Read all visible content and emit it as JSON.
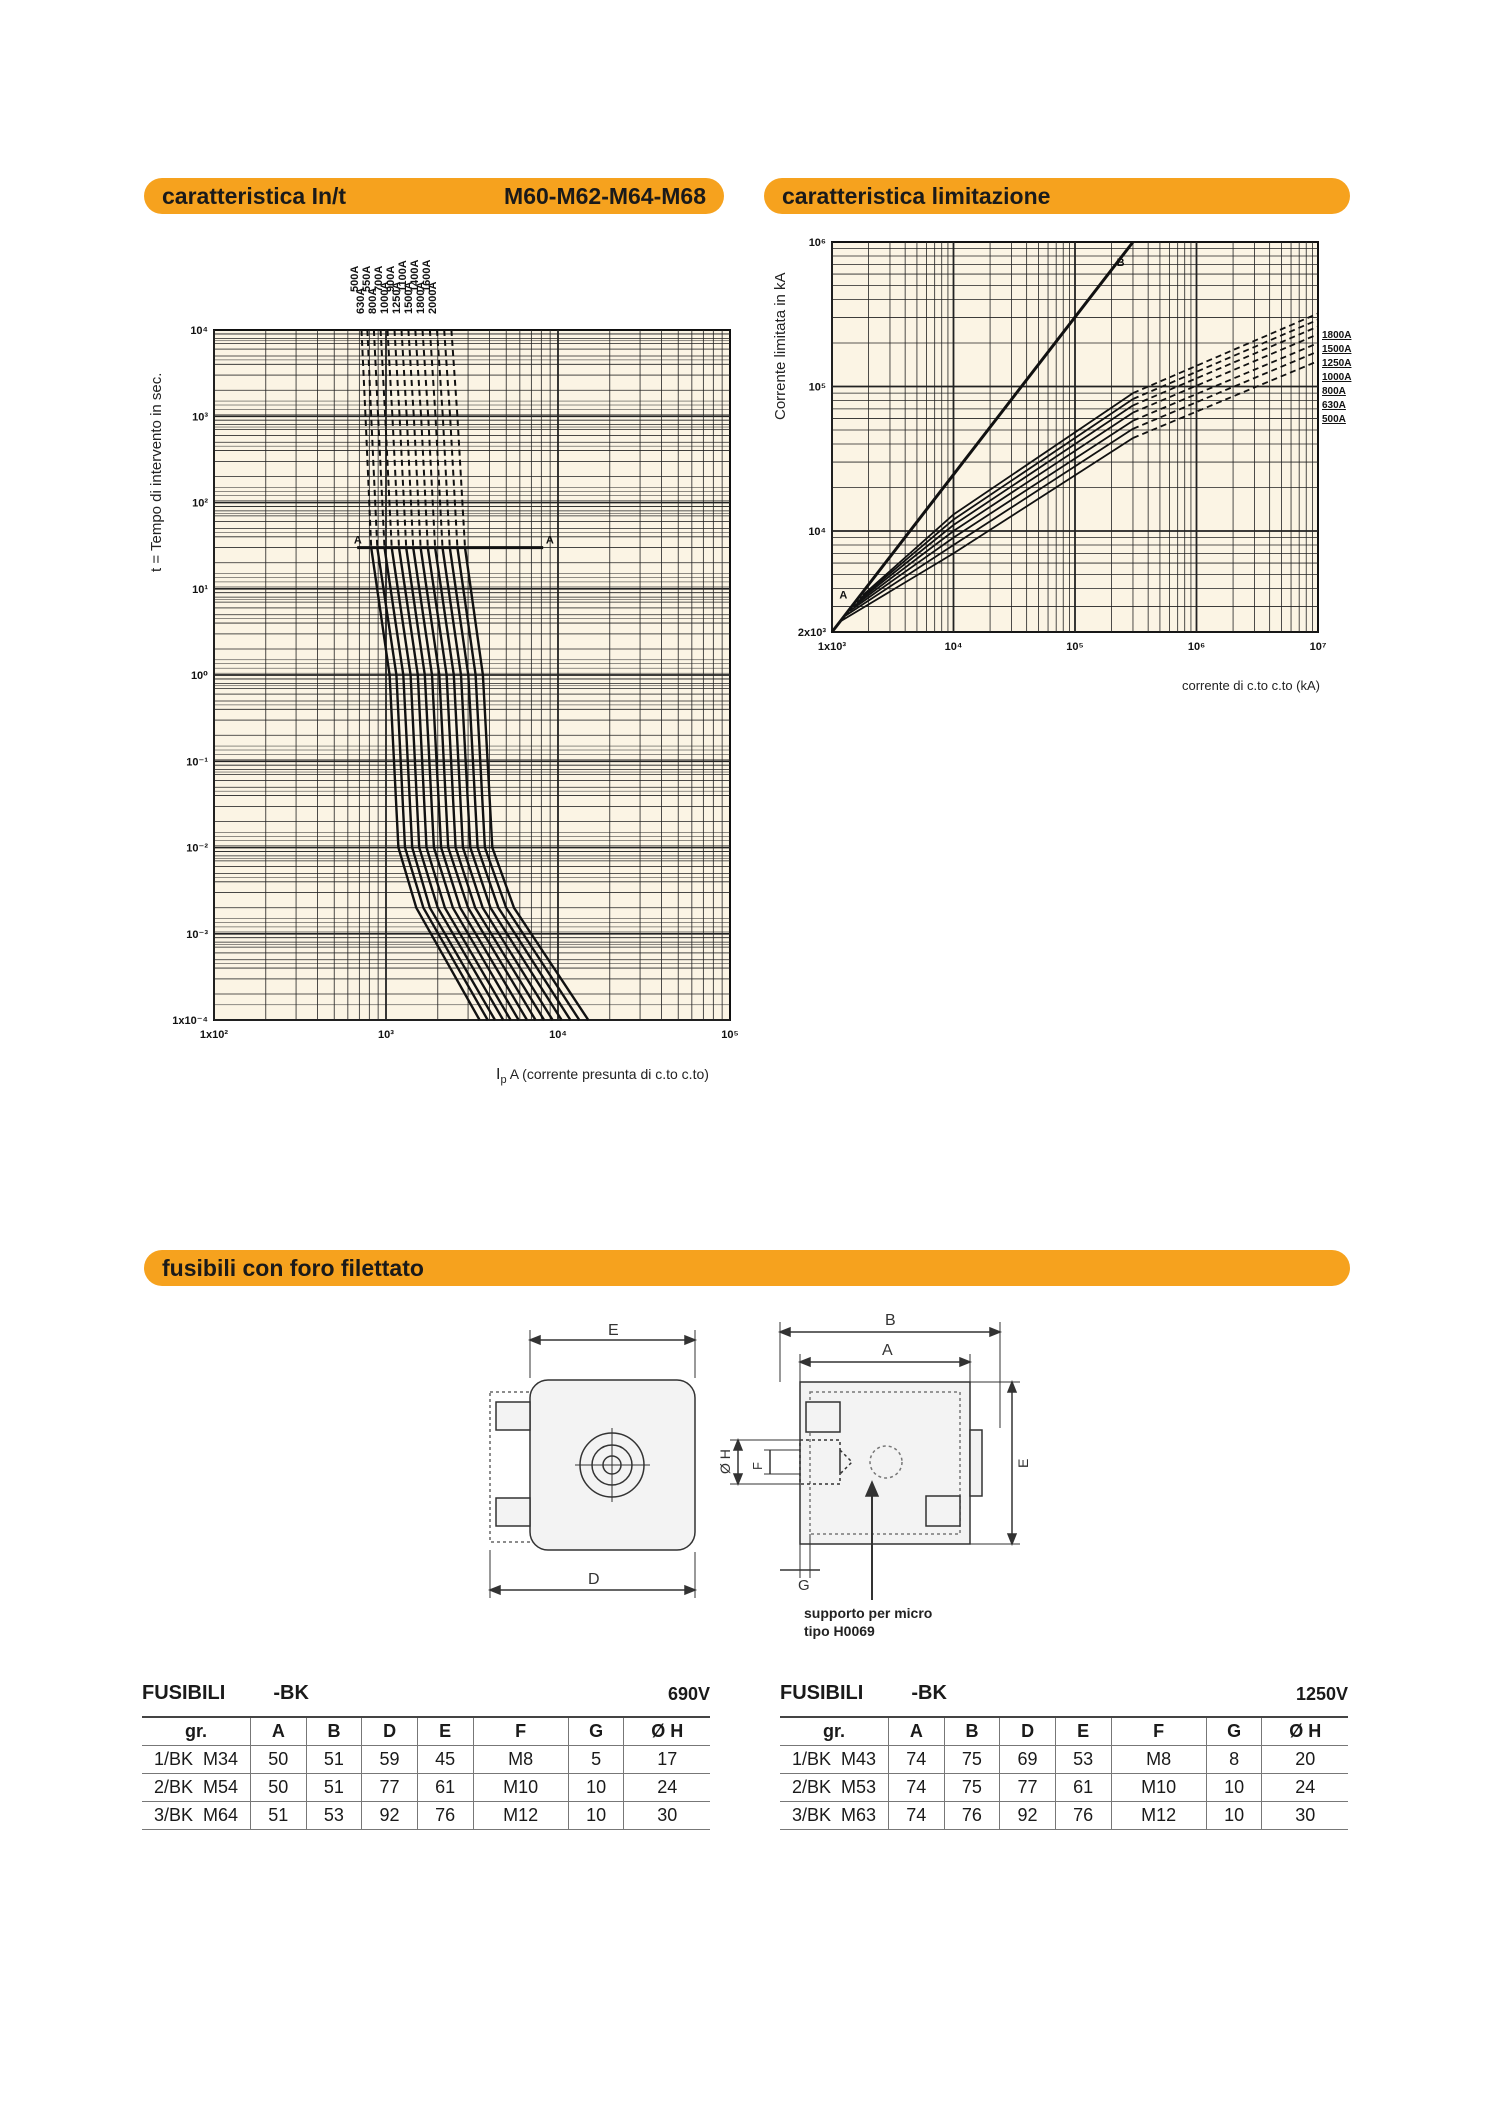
{
  "sections": {
    "in_t": {
      "title": "caratteristica In/t",
      "models": "M60-M62-M64-M68"
    },
    "limit": {
      "title": "caratteristica limitazione"
    },
    "fuses": {
      "title": "fusibili con foro filettato"
    }
  },
  "charts": [
    {
      "type": "line",
      "title": "caratteristica In/t",
      "ylabel": "t = Tempo di intervento in sec.",
      "xlabel_main": "A (corrente presunta di c.to c.to)",
      "xlabel_sym": "I",
      "xlabel_sub": "p",
      "xscale": "log",
      "yscale": "log",
      "xlim": [
        100,
        100000
      ],
      "ylim": [
        0.0001,
        10000
      ],
      "x_ticks": [
        {
          "v": 100,
          "label": "1x10²"
        },
        {
          "v": 1000,
          "label": "10³"
        },
        {
          "v": 10000,
          "label": "10⁴"
        },
        {
          "v": 100000,
          "label": "10⁵"
        }
      ],
      "y_ticks": [
        {
          "v": 10000,
          "label": "10⁴"
        },
        {
          "v": 1000,
          "label": "10³"
        },
        {
          "v": 100,
          "label": "10²"
        },
        {
          "v": 10,
          "label": "10¹"
        },
        {
          "v": 1,
          "label": "10⁰"
        },
        {
          "v": 0.1,
          "label": "10⁻¹"
        },
        {
          "v": 0.01,
          "label": "10⁻²"
        },
        {
          "v": 0.001,
          "label": "10⁻³"
        },
        {
          "v": 0.0001,
          "label": "1x10⁻⁴"
        }
      ],
      "annotations": [
        {
          "text": "A",
          "x": 650,
          "y": 30
        },
        {
          "text": "A",
          "x": 8500,
          "y": 30
        }
      ],
      "series": [
        {
          "name": "500A",
          "ratings_a": 500
        },
        {
          "name": "630A",
          "ratings_a": 630
        },
        {
          "name": "550A",
          "ratings_a": 550
        },
        {
          "name": "800A",
          "ratings_a": 800
        },
        {
          "name": "700A",
          "ratings_a": 700
        },
        {
          "name": "1000A",
          "ratings_a": 1000
        },
        {
          "name": "900A",
          "ratings_a": 900
        },
        {
          "name": "1250A",
          "ratings_a": 1250
        },
        {
          "name": "1100A",
          "ratings_a": 1100
        },
        {
          "name": "1500A",
          "ratings_a": 1500
        },
        {
          "name": "1400A",
          "ratings_a": 1400
        },
        {
          "name": "1800A",
          "ratings_a": 1800
        },
        {
          "name": "1600A",
          "ratings_a": 1600
        },
        {
          "name": "2000A",
          "ratings_a": 2000
        }
      ],
      "curves": [
        {
          "points": [
            [
              720,
              10000
            ],
            [
              760,
              1000
            ],
            [
              820,
              30
            ],
            [
              1050,
              1
            ],
            [
              1180,
              0.01
            ],
            [
              1500,
              0.002
            ],
            [
              3500,
              0.0001
            ]
          ]
        },
        {
          "points": [
            [
              780,
              10000
            ],
            [
              820,
              1000
            ],
            [
              890,
              30
            ],
            [
              1150,
              1
            ],
            [
              1290,
              0.01
            ],
            [
              1650,
              0.002
            ],
            [
              3900,
              0.0001
            ]
          ]
        },
        {
          "points": [
            [
              850,
              10000
            ],
            [
              900,
              1000
            ],
            [
              980,
              30
            ],
            [
              1260,
              1
            ],
            [
              1420,
              0.01
            ],
            [
              1800,
              0.002
            ],
            [
              4300,
              0.0001
            ]
          ]
        },
        {
          "points": [
            [
              930,
              10000
            ],
            [
              990,
              1000
            ],
            [
              1080,
              30
            ],
            [
              1390,
              1
            ],
            [
              1560,
              0.01
            ],
            [
              2000,
              0.002
            ],
            [
              4800,
              0.0001
            ]
          ]
        },
        {
          "points": [
            [
              1020,
              10000
            ],
            [
              1090,
              1000
            ],
            [
              1190,
              30
            ],
            [
              1530,
              1
            ],
            [
              1720,
              0.01
            ],
            [
              2200,
              0.002
            ],
            [
              5300,
              0.0001
            ]
          ]
        },
        {
          "points": [
            [
              1120,
              10000
            ],
            [
              1200,
              1000
            ],
            [
              1310,
              30
            ],
            [
              1680,
              1
            ],
            [
              1900,
              0.01
            ],
            [
              2450,
              0.002
            ],
            [
              5900,
              0.0001
            ]
          ]
        },
        {
          "points": [
            [
              1230,
              10000
            ],
            [
              1320,
              1000
            ],
            [
              1440,
              30
            ],
            [
              1850,
              1
            ],
            [
              2090,
              0.01
            ],
            [
              2700,
              0.002
            ],
            [
              6600,
              0.0001
            ]
          ]
        },
        {
          "points": [
            [
              1350,
              10000
            ],
            [
              1450,
              1000
            ],
            [
              1590,
              30
            ],
            [
              2040,
              1
            ],
            [
              2300,
              0.01
            ],
            [
              3000,
              0.002
            ],
            [
              7400,
              0.0001
            ]
          ]
        },
        {
          "points": [
            [
              1480,
              10000
            ],
            [
              1600,
              1000
            ],
            [
              1750,
              30
            ],
            [
              2250,
              1
            ],
            [
              2540,
              0.01
            ],
            [
              3300,
              0.002
            ],
            [
              8300,
              0.0001
            ]
          ]
        },
        {
          "points": [
            [
              1630,
              10000
            ],
            [
              1760,
              1000
            ],
            [
              1930,
              30
            ],
            [
              2480,
              1
            ],
            [
              2800,
              0.01
            ],
            [
              3650,
              0.002
            ],
            [
              9300,
              0.0001
            ]
          ]
        },
        {
          "points": [
            [
              1800,
              10000
            ],
            [
              1940,
              1000
            ],
            [
              2130,
              30
            ],
            [
              2730,
              1
            ],
            [
              3090,
              0.01
            ],
            [
              4050,
              0.002
            ],
            [
              10500,
              0.0001
            ]
          ]
        },
        {
          "points": [
            [
              1980,
              10000
            ],
            [
              2140,
              1000
            ],
            [
              2350,
              30
            ],
            [
              3010,
              1
            ],
            [
              3410,
              0.01
            ],
            [
              4500,
              0.002
            ],
            [
              11800,
              0.0001
            ]
          ]
        },
        {
          "points": [
            [
              2180,
              10000
            ],
            [
              2360,
              1000
            ],
            [
              2600,
              30
            ],
            [
              3320,
              1
            ],
            [
              3760,
              0.01
            ],
            [
              5000,
              0.002
            ],
            [
              13300,
              0.0001
            ]
          ]
        },
        {
          "points": [
            [
              2400,
              10000
            ],
            [
              2600,
              1000
            ],
            [
              2880,
              30
            ],
            [
              3660,
              1
            ],
            [
              4150,
              0.01
            ],
            [
              5550,
              0.002
            ],
            [
              15000,
              0.0001
            ]
          ]
        }
      ]
    },
    {
      "type": "line",
      "title": "caratteristica limitazione",
      "ylabel": "Corrente limitata in kA",
      "xlabel": "corrente di c.to c.to (kA)",
      "xscale": "log",
      "yscale": "log",
      "xlim": [
        1000,
        10000000
      ],
      "ylim": [
        2000,
        1000000
      ],
      "x_ticks": [
        {
          "v": 1000,
          "label": "1x10³"
        },
        {
          "v": 10000,
          "label": "10⁴"
        },
        {
          "v": 100000,
          "label": "10⁵"
        },
        {
          "v": 1000000,
          "label": "10⁶"
        },
        {
          "v": 10000000,
          "label": "10⁷"
        }
      ],
      "y_ticks": [
        {
          "v": 1000000,
          "label": "10⁶"
        },
        {
          "v": 100000,
          "label": "10⁵"
        },
        {
          "v": 10000,
          "label": "10⁴"
        },
        {
          "v": 2000,
          "label": "2x10³"
        }
      ],
      "line_labels": [
        {
          "text": "B",
          "x": 220000,
          "y": 680000
        },
        {
          "text": "A",
          "x": 1150,
          "y": 3400
        }
      ],
      "series_labels": [
        "1800A",
        "1500A",
        "1250A",
        "1000A",
        "800A",
        "630A",
        "500A"
      ],
      "boundary": [
        [
          1000,
          2000
        ],
        [
          300000,
          1000000
        ]
      ],
      "series": [
        {
          "name": "1800A",
          "points": [
            [
              1800,
              3600
            ],
            [
              10000,
              13000
            ],
            [
              300000,
              90000
            ],
            [
              10000000,
              320000
            ]
          ]
        },
        {
          "name": "1500A",
          "points": [
            [
              1700,
              3400
            ],
            [
              10000,
              12000
            ],
            [
              300000,
              82000
            ],
            [
              10000000,
              290000
            ]
          ]
        },
        {
          "name": "1250A",
          "points": [
            [
              1600,
              3200
            ],
            [
              10000,
              11000
            ],
            [
              300000,
              74000
            ],
            [
              10000000,
              260000
            ]
          ]
        },
        {
          "name": "1000A",
          "points": [
            [
              1500,
              3000
            ],
            [
              10000,
              10000
            ],
            [
              300000,
              66000
            ],
            [
              10000000,
              230000
            ]
          ]
        },
        {
          "name": "800A",
          "points": [
            [
              1400,
              2800
            ],
            [
              10000,
              9000
            ],
            [
              300000,
              58000
            ],
            [
              10000000,
              200000
            ]
          ]
        },
        {
          "name": "630A",
          "points": [
            [
              1300,
              2600
            ],
            [
              10000,
              8000
            ],
            [
              300000,
              51000
            ],
            [
              10000000,
              175000
            ]
          ]
        },
        {
          "name": "500A",
          "points": [
            [
              1200,
              2400
            ],
            [
              10000,
              7000
            ],
            [
              300000,
              44000
            ],
            [
              10000000,
              150000
            ]
          ]
        }
      ]
    }
  ],
  "diagram": {
    "labels": {
      "E_top": "E",
      "D_bottom": "D",
      "B_top": "B",
      "A_top": "A",
      "OH": "Ø H",
      "F": "F",
      "E_side": "E",
      "G": "G"
    },
    "note_line1": "supporto per micro",
    "note_line2": "tipo H0069"
  },
  "tables": [
    {
      "title_left": "FUSIBILI",
      "title_mid": "-BK",
      "voltage": "690V",
      "columns": [
        "gr.",
        "A",
        "B",
        "D",
        "E",
        "F",
        "G",
        "Ø H"
      ],
      "rows": [
        [
          "1/BK  M34",
          "50",
          "51",
          "59",
          "45",
          "M8",
          "5",
          "17"
        ],
        [
          "2/BK  M54",
          "50",
          "51",
          "77",
          "61",
          "M10",
          "10",
          "24"
        ],
        [
          "3/BK  M64",
          "51",
          "53",
          "92",
          "76",
          "M12",
          "10",
          "30"
        ]
      ]
    },
    {
      "title_left": "FUSIBILI",
      "title_mid": "-BK",
      "voltage": "1250V",
      "columns": [
        "gr.",
        "A",
        "B",
        "D",
        "E",
        "F",
        "G",
        "Ø H"
      ],
      "rows": [
        [
          "1/BK  M43",
          "74",
          "75",
          "69",
          "53",
          "M8",
          "8",
          "20"
        ],
        [
          "2/BK  M53",
          "74",
          "75",
          "77",
          "61",
          "M10",
          "10",
          "24"
        ],
        [
          "3/BK  M63",
          "74",
          "76",
          "92",
          "76",
          "M12",
          "10",
          "30"
        ]
      ]
    }
  ],
  "colors": {
    "accent": "#f6a21e",
    "chart_bg": "#fbf4e4",
    "ink": "#111111"
  }
}
